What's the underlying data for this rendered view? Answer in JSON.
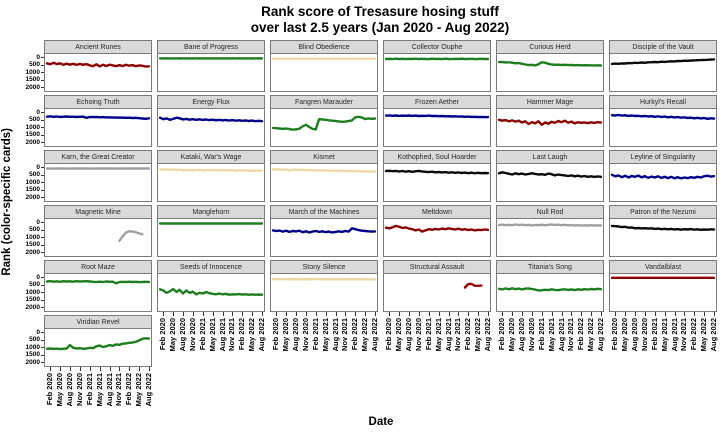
{
  "title": {
    "line1": "Rank score of Tresasure hosing stuff",
    "line2": "over last 2.5 years (Jan 2020 - Aug 2022)"
  },
  "axes": {
    "y_label": "Rank (color-specific cards)",
    "x_label": "Date",
    "y_ticks": [
      0,
      500,
      1000,
      1500,
      2000
    ],
    "x_tick_labels": [
      "Feb 2020",
      "May 2020",
      "Aug 2020",
      "Nov 2020",
      "Feb 2021",
      "May 2021",
      "Aug 2021",
      "Nov 2021",
      "Feb 2022",
      "May 2022",
      "Aug 2022"
    ],
    "x_tick_month_indices": [
      1,
      4,
      7,
      10,
      13,
      16,
      19,
      22,
      25,
      28,
      31
    ]
  },
  "palette": {
    "darkred": "#8B0000",
    "green": "#1E7D1E",
    "wheat": "#EED9A4",
    "blue": "#00008B",
    "black": "#0A0A0A",
    "gray": "#A0A0A0"
  },
  "chart_data": {
    "type": "line",
    "facet_grid": {
      "columns": 6,
      "rows": 6
    },
    "y_axis": {
      "label": "Rank (color-specific cards)",
      "range": [
        0,
        2000
      ],
      "inverted": true
    },
    "x": [
      "Jan 2020",
      "Feb 2020",
      "Mar 2020",
      "Apr 2020",
      "May 2020",
      "Jun 2020",
      "Jul 2020",
      "Aug 2020",
      "Sep 2020",
      "Oct 2020",
      "Nov 2020",
      "Dec 2020",
      "Jan 2021",
      "Feb 2021",
      "Mar 2021",
      "Apr 2021",
      "May 2021",
      "Jun 2021",
      "Jul 2021",
      "Aug 2021",
      "Sep 2021",
      "Oct 2021",
      "Nov 2021",
      "Dec 2021",
      "Jan 2022",
      "Feb 2022",
      "Mar 2022",
      "Apr 2022",
      "May 2022",
      "Jun 2022",
      "Jul 2022",
      "Aug 2022"
    ],
    "facets": [
      {
        "title": "Ancient Runes",
        "color": "darkred",
        "values": [
          430,
          480,
          390,
          470,
          420,
          520,
          440,
          510,
          450,
          530,
          460,
          520,
          470,
          560,
          610,
          490,
          630,
          520,
          600,
          510,
          560,
          610,
          540,
          600,
          520,
          580,
          540,
          610,
          560,
          590,
          640,
          620
        ]
      },
      {
        "title": "Bane of Progress",
        "color": "green",
        "values": [
          90,
          92,
          88,
          93,
          90,
          91,
          89,
          92,
          90,
          93,
          88,
          92,
          90,
          91,
          89,
          93,
          90,
          92,
          88,
          91,
          90,
          93,
          89,
          92,
          90,
          91,
          88,
          92,
          90,
          91,
          90,
          92
        ]
      },
      {
        "title": "Blind Obedience",
        "color": "wheat",
        "values": [
          110,
          112,
          108,
          113,
          110,
          111,
          109,
          112,
          110,
          113,
          108,
          112,
          110,
          111,
          109,
          113,
          110,
          112,
          108,
          111,
          110,
          113,
          109,
          112,
          110,
          111,
          108,
          112,
          110,
          111,
          110,
          112
        ]
      },
      {
        "title": "Collector Ouphe",
        "color": "green",
        "values": [
          130,
          118,
          140,
          112,
          132,
          120,
          142,
          118,
          130,
          110,
          138,
          122,
          130,
          142,
          112,
          130,
          120,
          140,
          114,
          130,
          138,
          120,
          132,
          112,
          140,
          128,
          120,
          138,
          130,
          122,
          130,
          126
        ]
      },
      {
        "title": "Curious Herd",
        "color": "green",
        "values": [
          340,
          330,
          360,
          350,
          380,
          420,
          400,
          450,
          500,
          540,
          520,
          560,
          480,
          350,
          380,
          450,
          500,
          520,
          510,
          530,
          520,
          540,
          530,
          550,
          540,
          550,
          545,
          555,
          550,
          560,
          555,
          565
        ]
      },
      {
        "title": "Disciple of the Vault",
        "color": "black",
        "values": [
          460,
          440,
          455,
          425,
          435,
          405,
          415,
          385,
          395,
          365,
          385,
          355,
          345,
          335,
          345,
          315,
          325,
          305,
          285,
          295,
          265,
          275,
          245,
          255,
          235,
          225,
          215,
          205,
          195,
          185,
          172,
          162
        ]
      },
      {
        "title": "Echoing Truth",
        "color": "blue",
        "values": [
          310,
          290,
          320,
          300,
          330,
          310,
          300,
          320,
          310,
          330,
          320,
          310,
          385,
          330,
          340,
          330,
          350,
          340,
          360,
          350,
          370,
          360,
          380,
          370,
          390,
          380,
          400,
          390,
          410,
          435,
          450,
          420
        ]
      },
      {
        "title": "Energy Flux",
        "color": "blue",
        "values": [
          380,
          480,
          430,
          520,
          460,
          380,
          420,
          500,
          460,
          510,
          480,
          520,
          490,
          530,
          500,
          540,
          510,
          550,
          520,
          560,
          530,
          570,
          540,
          580,
          550,
          590,
          560,
          600,
          570,
          610,
          590,
          615
        ]
      },
      {
        "title": "Fangren Marauder",
        "color": "green",
        "values": [
          1060,
          1080,
          1100,
          1130,
          1100,
          1140,
          1180,
          1150,
          1120,
          950,
          850,
          1000,
          1120,
          1160,
          480,
          500,
          520,
          550,
          580,
          600,
          630,
          650,
          640,
          600,
          560,
          350,
          320,
          360,
          470,
          430,
          450,
          440
        ]
      },
      {
        "title": "Frozen Aether",
        "color": "blue",
        "values": [
          240,
          225,
          250,
          235,
          258,
          240,
          252,
          232,
          260,
          242,
          268,
          250,
          258,
          242,
          268,
          258,
          278,
          268,
          288,
          278,
          298,
          288,
          308,
          298,
          318,
          308,
          328,
          318,
          338,
          328,
          348,
          340
        ]
      },
      {
        "title": "Hammer Mage",
        "color": "darkred",
        "values": [
          520,
          580,
          540,
          620,
          560,
          640,
          580,
          700,
          620,
          800,
          680,
          750,
          620,
          850,
          700,
          780,
          650,
          720,
          600,
          680,
          580,
          720,
          640,
          760,
          680,
          720,
          700,
          740,
          690,
          730,
          680,
          700
        ]
      },
      {
        "title": "Hurkyl's Recall",
        "color": "blue",
        "values": [
          210,
          230,
          200,
          240,
          220,
          260,
          230,
          270,
          250,
          290,
          260,
          300,
          280,
          320,
          290,
          330,
          300,
          350,
          320,
          360,
          340,
          380,
          350,
          400,
          380,
          420,
          390,
          430,
          400,
          450,
          420,
          440
        ]
      },
      {
        "title": "Karn, the Great Creator",
        "color": "gray",
        "values": [
          100,
          96,
          104,
          98,
          102,
          96,
          105,
          99,
          101,
          97,
          103,
          98,
          102,
          97,
          104,
          99,
          102,
          96,
          103,
          98,
          101,
          97,
          104,
          99,
          102,
          97,
          103,
          98,
          102,
          97,
          103,
          100
        ]
      },
      {
        "title": "Kataki, War's Wage",
        "color": "wheat",
        "values": [
          160,
          180,
          152,
          190,
          170,
          200,
          180,
          218,
          190,
          228,
          200,
          220,
          182,
          238,
          200,
          230,
          190,
          220,
          200,
          238,
          210,
          230,
          200,
          248,
          220,
          240,
          210,
          248,
          230,
          248,
          240,
          250
        ]
      },
      {
        "title": "Kismet",
        "color": "wheat",
        "values": [
          150,
          170,
          160,
          180,
          170,
          230,
          190,
          180,
          200,
          190,
          210,
          200,
          220,
          210,
          230,
          220,
          240,
          230,
          250,
          240,
          260,
          250,
          270,
          260,
          280,
          270,
          290,
          280,
          300,
          290,
          310,
          300
        ]
      },
      {
        "title": "Kothophed, Soul Hoarder",
        "color": "black",
        "values": [
          270,
          250,
          280,
          260,
          300,
          270,
          310,
          280,
          320,
          290,
          260,
          300,
          320,
          340,
          310,
          350,
          330,
          360,
          340,
          380,
          350,
          390,
          360,
          400,
          370,
          410,
          380,
          420,
          390,
          410,
          400,
          410
        ]
      },
      {
        "title": "Last Laugh",
        "color": "black",
        "values": [
          420,
          350,
          400,
          450,
          500,
          420,
          480,
          440,
          500,
          460,
          420,
          460,
          500,
          480,
          520,
          440,
          480,
          560,
          500,
          540,
          560,
          600,
          560,
          620,
          580,
          640,
          600,
          650,
          620,
          660,
          630,
          650
        ]
      },
      {
        "title": "Leyline of Singularity",
        "color": "blue",
        "values": [
          520,
          620,
          560,
          680,
          580,
          700,
          600,
          650,
          570,
          690,
          610,
          720,
          640,
          700,
          620,
          730,
          650,
          740,
          660,
          750,
          680,
          760,
          700,
          740,
          680,
          720,
          650,
          700,
          620,
          580,
          640,
          610
        ]
      },
      {
        "title": "Magnetic Mine",
        "color": "gray",
        "values": [
          null,
          null,
          null,
          null,
          null,
          null,
          null,
          null,
          null,
          null,
          null,
          null,
          null,
          null,
          null,
          null,
          null,
          null,
          null,
          null,
          null,
          null,
          1250,
          950,
          700,
          620,
          630,
          680,
          760,
          820,
          null,
          null
        ]
      },
      {
        "title": "Manglehorn",
        "color": "green",
        "values": [
          95,
          100,
          92,
          98,
          94,
          100,
          95,
          102,
          96,
          100,
          94,
          99,
          95,
          101,
          96,
          100,
          95,
          100,
          96,
          102,
          97,
          100,
          95,
          100,
          96,
          101,
          97,
          100,
          96,
          100,
          97,
          99
        ]
      },
      {
        "title": "March of the Machines",
        "color": "blue",
        "values": [
          560,
          600,
          570,
          640,
          580,
          660,
          600,
          630,
          580,
          680,
          620,
          700,
          640,
          600,
          660,
          620,
          680,
          640,
          700,
          660,
          620,
          660,
          600,
          640,
          420,
          480,
          540,
          580,
          600,
          620,
          640,
          630
        ]
      },
      {
        "title": "Meltdown",
        "color": "darkred",
        "values": [
          380,
          420,
          350,
          260,
          320,
          400,
          360,
          440,
          480,
          560,
          500,
          640,
          560,
          480,
          520,
          460,
          500,
          440,
          480,
          420,
          460,
          500,
          440,
          520,
          480,
          540,
          500,
          560,
          520,
          540,
          500,
          520
        ]
      },
      {
        "title": "Null Rod",
        "color": "gray",
        "values": [
          200,
          180,
          210,
          190,
          220,
          170,
          200,
          180,
          210,
          190,
          230,
          200,
          210,
          180,
          220,
          190,
          160,
          200,
          180,
          210,
          190,
          220,
          200,
          230,
          210,
          240,
          220,
          230,
          210,
          240,
          220,
          230
        ]
      },
      {
        "title": "Patron of the Nezumi",
        "color": "black",
        "values": [
          260,
          280,
          300,
          340,
          320,
          380,
          360,
          420,
          400,
          430,
          410,
          440,
          420,
          460,
          440,
          480,
          450,
          490,
          460,
          500,
          470,
          510,
          480,
          500,
          470,
          510,
          490,
          520,
          500,
          510,
          490,
          500
        ]
      },
      {
        "title": "Root Maze",
        "color": "green",
        "values": [
          300,
          280,
          310,
          290,
          320,
          280,
          300,
          290,
          310,
          280,
          300,
          290,
          280,
          300,
          320,
          340,
          310,
          330,
          300,
          320,
          310,
          420,
          340,
          320,
          330,
          310,
          330,
          320,
          340,
          330,
          320,
          330
        ]
      },
      {
        "title": "Seeds of Innocence",
        "color": "green",
        "values": [
          820,
          900,
          1050,
          950,
          800,
          1000,
          850,
          1100,
          900,
          1050,
          980,
          1150,
          1050,
          1100,
          1000,
          1080,
          1120,
          1150,
          1100,
          1150,
          1120,
          1180,
          1150,
          1160,
          1140,
          1170,
          1150,
          1180,
          1160,
          1180,
          1170,
          1180
        ]
      },
      {
        "title": "Stony Silence",
        "color": "wheat",
        "values": [
          140,
          150,
          135,
          145,
          140,
          150,
          140,
          155,
          145,
          150,
          140,
          150,
          145,
          120,
          140,
          150,
          145,
          155,
          150,
          145,
          150,
          155,
          145,
          150,
          148,
          152,
          146,
          150,
          148,
          152,
          150,
          150
        ]
      },
      {
        "title": "Structural Assault",
        "color": "darkred",
        "values": [
          null,
          null,
          null,
          null,
          null,
          null,
          null,
          null,
          null,
          null,
          null,
          null,
          null,
          null,
          null,
          null,
          null,
          null,
          null,
          null,
          null,
          null,
          null,
          null,
          700,
          470,
          460,
          580,
          590,
          575,
          null,
          null
        ]
      },
      {
        "title": "Titania's Song",
        "color": "green",
        "values": [
          790,
          830,
          760,
          820,
          750,
          810,
          770,
          830,
          780,
          760,
          800,
          840,
          900,
          880,
          850,
          870,
          820,
          860,
          880,
          840,
          820,
          860,
          830,
          870,
          820,
          850,
          810,
          840,
          800,
          830,
          790,
          810
        ]
      },
      {
        "title": "Vandalblast",
        "color": "darkred",
        "values": [
          55,
          55,
          54,
          56,
          55,
          54,
          55,
          56,
          54,
          55,
          56,
          55,
          54,
          55,
          56,
          54,
          55,
          54,
          56,
          55,
          54,
          56,
          55,
          54,
          56,
          55,
          54,
          55,
          56,
          55,
          54,
          55
        ]
      },
      {
        "title": "Viridian Revel",
        "color": "green",
        "values": [
          1120,
          1100,
          1130,
          1110,
          1140,
          1120,
          1100,
          870,
          1050,
          1100,
          1080,
          1120,
          1100,
          1050,
          1080,
          950,
          900,
          1000,
          950,
          870,
          920,
          830,
          850,
          780,
          760,
          720,
          700,
          650,
          560,
          450,
          420,
          440
        ]
      }
    ]
  }
}
